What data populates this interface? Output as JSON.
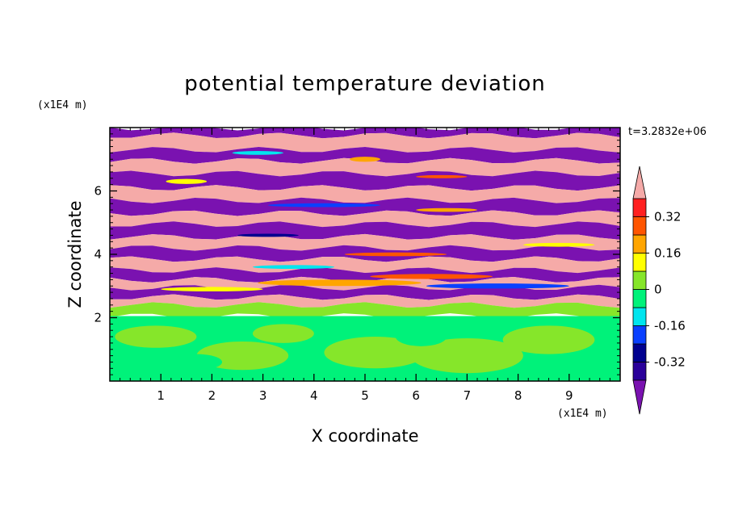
{
  "chart_data": {
    "type": "heatmap",
    "title": "potential temperature deviation",
    "xlabel": "X coordinate",
    "ylabel": "Z coordinate",
    "x_unit": "(x1E4 m)",
    "y_unit": "(x1E4 m)",
    "time_label": "t=3.2832e+06",
    "xlim": [
      0,
      10
    ],
    "ylim": [
      0,
      8
    ],
    "x_ticks": [
      1,
      2,
      3,
      4,
      5,
      6,
      7,
      8,
      9
    ],
    "y_ticks": [
      2,
      4,
      6
    ],
    "colorbar": {
      "levels": [
        -0.4,
        -0.32,
        -0.24,
        -0.16,
        -0.08,
        0,
        0.08,
        0.16,
        0.24,
        0.32,
        0.4
      ],
      "colors": [
        "#2a009a",
        "#00008f",
        "#0a40ff",
        "#00e5ee",
        "#00f27a",
        "#86e62a",
        "#ffff00",
        "#ffa500",
        "#ff5500",
        "#ff2020"
      ],
      "under_color": "#7a12b0",
      "over_color": "#f5aaa8",
      "tick_labels": [
        "0.32",
        "0.16",
        "0",
        "-0.16",
        "-0.32"
      ],
      "tick_values": [
        0.32,
        0.16,
        0,
        -0.16,
        -0.32
      ]
    },
    "field": {
      "bands": [
        {
          "z_bottom": 7.75,
          "z_top": 8.0,
          "value": -0.45
        },
        {
          "z_bottom": 7.3,
          "z_top": 7.75,
          "value": 0.45
        },
        {
          "z_bottom": 6.95,
          "z_top": 7.3,
          "value": -0.45
        },
        {
          "z_bottom": 6.55,
          "z_top": 6.95,
          "value": 0.45
        },
        {
          "z_bottom": 6.1,
          "z_top": 6.55,
          "value": -0.45
        },
        {
          "z_bottom": 5.7,
          "z_top": 6.1,
          "value": 0.45
        },
        {
          "z_bottom": 5.3,
          "z_top": 5.7,
          "value": -0.45
        },
        {
          "z_bottom": 4.95,
          "z_top": 5.3,
          "value": 0.45
        },
        {
          "z_bottom": 4.55,
          "z_top": 4.95,
          "value": -0.45
        },
        {
          "z_bottom": 4.2,
          "z_top": 4.55,
          "value": 0.45
        },
        {
          "z_bottom": 3.85,
          "z_top": 4.2,
          "value": -0.45
        },
        {
          "z_bottom": 3.5,
          "z_top": 3.85,
          "value": 0.45
        },
        {
          "z_bottom": 3.2,
          "z_top": 3.5,
          "value": -0.45
        },
        {
          "z_bottom": 2.95,
          "z_top": 3.2,
          "value": 0.45
        },
        {
          "z_bottom": 2.65,
          "z_top": 2.95,
          "value": -0.45
        },
        {
          "z_bottom": 2.4,
          "z_top": 2.65,
          "value": 0.45
        },
        {
          "z_bottom": 2.05,
          "z_top": 2.4,
          "value": 0.04
        },
        {
          "z_bottom": 0.0,
          "z_top": 2.05,
          "value": -0.04
        }
      ],
      "eddies": [
        {
          "x": 0.9,
          "z": 1.4,
          "rx": 0.8,
          "rz": 0.35,
          "value": 0.04
        },
        {
          "x": 2.6,
          "z": 0.8,
          "rx": 0.9,
          "rz": 0.45,
          "value": 0.04
        },
        {
          "x": 3.4,
          "z": 1.5,
          "rx": 0.6,
          "rz": 0.3,
          "value": 0.04
        },
        {
          "x": 5.2,
          "z": 0.9,
          "rx": 1.0,
          "rz": 0.5,
          "value": 0.04
        },
        {
          "x": 7.0,
          "z": 0.8,
          "rx": 1.1,
          "rz": 0.55,
          "value": 0.04
        },
        {
          "x": 8.6,
          "z": 1.3,
          "rx": 0.9,
          "rz": 0.45,
          "value": 0.04
        },
        {
          "x": 1.7,
          "z": 0.6,
          "rx": 0.5,
          "rz": 0.25,
          "value": -0.04
        },
        {
          "x": 6.1,
          "z": 1.4,
          "rx": 0.5,
          "rz": 0.3,
          "value": -0.04
        },
        {
          "x": 4.5,
          "z": 3.1,
          "rx": 1.6,
          "rz": 0.1,
          "value": 0.2
        },
        {
          "x": 6.3,
          "z": 3.3,
          "rx": 1.2,
          "rz": 0.08,
          "value": 0.28
        },
        {
          "x": 2.0,
          "z": 2.9,
          "rx": 1.0,
          "rz": 0.07,
          "value": 0.12
        },
        {
          "x": 7.6,
          "z": 3.0,
          "rx": 1.4,
          "rz": 0.08,
          "value": -0.2
        },
        {
          "x": 3.6,
          "z": 3.6,
          "rx": 0.8,
          "rz": 0.06,
          "value": -0.12
        },
        {
          "x": 5.6,
          "z": 4.0,
          "rx": 1.0,
          "rz": 0.06,
          "value": 0.3
        },
        {
          "x": 8.8,
          "z": 4.3,
          "rx": 0.7,
          "rz": 0.06,
          "value": 0.08
        },
        {
          "x": 4.2,
          "z": 5.55,
          "rx": 1.1,
          "rz": 0.06,
          "value": -0.18
        },
        {
          "x": 6.6,
          "z": 5.4,
          "rx": 0.6,
          "rz": 0.06,
          "value": 0.22
        },
        {
          "x": 1.5,
          "z": 6.3,
          "rx": 0.4,
          "rz": 0.08,
          "value": 0.08
        },
        {
          "x": 2.9,
          "z": 7.2,
          "rx": 0.5,
          "rz": 0.06,
          "value": -0.1
        },
        {
          "x": 5.0,
          "z": 7.0,
          "rx": 0.3,
          "rz": 0.08,
          "value": 0.16
        },
        {
          "x": 6.5,
          "z": 6.45,
          "rx": 0.5,
          "rz": 0.05,
          "value": 0.26
        },
        {
          "x": 3.1,
          "z": 4.6,
          "rx": 0.6,
          "rz": 0.05,
          "value": -0.26
        }
      ]
    }
  }
}
